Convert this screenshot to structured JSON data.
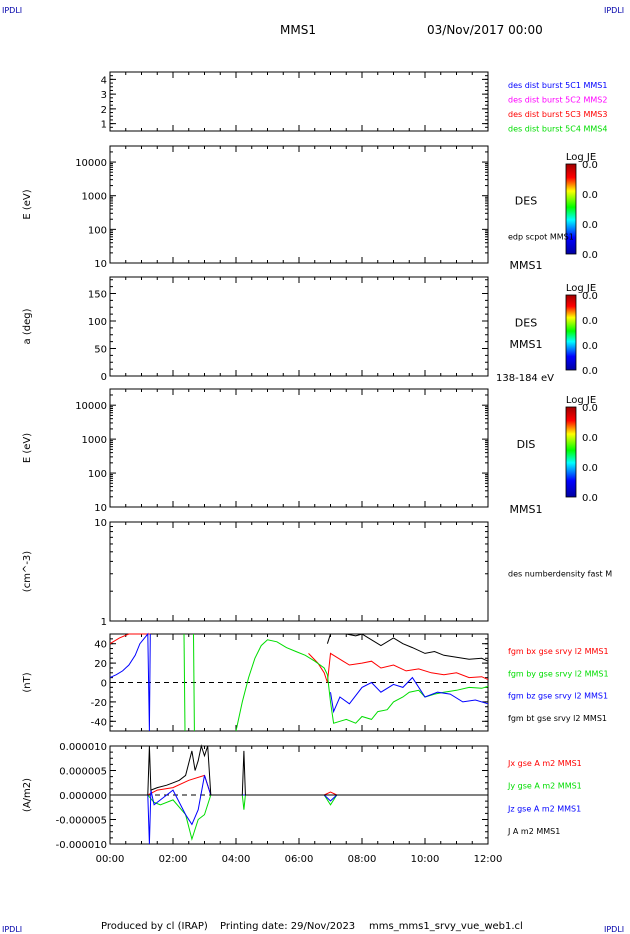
{
  "corner_label": "IPDLI",
  "header": {
    "spacecraft": "MMS1",
    "date": "03/Nov/2017 00:00"
  },
  "footer": {
    "produced_by": "Produced by cl (IRAP)",
    "printing_date": "Printing date: 29/Nov/2023",
    "file": "mms_mms1_srvy_vue_web1.cl"
  },
  "colors": {
    "blue": "#0000ff",
    "magenta": "#ff00ff",
    "red": "#ff0000",
    "green": "#00dd00",
    "black": "#000000"
  },
  "chart_data": [
    {
      "type": "line",
      "ylim": [
        0.5,
        4.5
      ],
      "yticks": [
        "1",
        "2",
        "3",
        "4"
      ],
      "series": [
        {
          "name": "des dist burst 5C1 MMS1",
          "color": "#0000ff"
        },
        {
          "name": "des dist burst 5C2 MMS2",
          "color": "#ff00ff"
        },
        {
          "name": "des dist burst 5C3 MMS3",
          "color": "#ff0000"
        },
        {
          "name": "des dist burst 5C4 MMS4",
          "color": "#00dd00"
        }
      ]
    },
    {
      "type": "heatmap",
      "ylabel": "E (eV)",
      "yscale": "log",
      "ylim": [
        10,
        30000
      ],
      "yticks": [
        "10",
        "100",
        "1000",
        "10000"
      ],
      "right_labels": [
        "DES",
        "MMS1"
      ],
      "overlay": "edp scpot MMS1",
      "colorbar": {
        "title": "Log JE",
        "ticks": [
          "0.0",
          "0.0",
          "0.0",
          "0.0"
        ]
      }
    },
    {
      "type": "heatmap",
      "ylabel": "a (deg)",
      "ylim": [
        0,
        180
      ],
      "yticks": [
        "0",
        "50",
        "100",
        "150"
      ],
      "right_labels": [
        "DES",
        "MMS1",
        "138-184 eV"
      ],
      "colorbar": {
        "title": "Log JE",
        "ticks": [
          "0.0",
          "0.0",
          "0.0",
          "0.0"
        ]
      }
    },
    {
      "type": "heatmap",
      "ylabel": "E (eV)",
      "yscale": "log",
      "ylim": [
        10,
        30000
      ],
      "yticks": [
        "10",
        "100",
        "1000",
        "10000"
      ],
      "right_labels": [
        "DIS",
        "MMS1"
      ],
      "colorbar": {
        "title": "Log JE",
        "ticks": [
          "0.0",
          "0.0",
          "0.0",
          "0.0"
        ]
      }
    },
    {
      "type": "line",
      "ylabel": "(cm^-3)",
      "yscale": "log",
      "ylim": [
        1,
        10
      ],
      "yticks": [
        "1",
        "10"
      ],
      "series": [
        {
          "name": "des numberdensity fast M",
          "color": "#000000"
        }
      ]
    },
    {
      "type": "line",
      "ylabel": "(nT)",
      "ylim": [
        -50,
        50
      ],
      "yticks": [
        "-40",
        "-20",
        "0",
        "20",
        "40"
      ],
      "series": [
        {
          "name": "fgm bx gse srvy l2 MMS1",
          "color": "#ff0000",
          "x": [
            0.0,
            0.3,
            0.6,
            0.8,
            0.95,
            1.1,
            1.28,
            1.3,
            2.4,
            2.45,
            2.5,
            2.85,
            2.9,
            2.95,
            6.0,
            6.3,
            6.6,
            6.8,
            6.9,
            7.0,
            7.1,
            7.4,
            7.6,
            8.0,
            8.3,
            8.6,
            9.0,
            9.4,
            9.8,
            10.2,
            10.6,
            11.0,
            11.4,
            11.8,
            12.0
          ],
          "y": [
            40,
            46,
            50,
            50,
            50,
            50,
            50,
            null,
            null,
            50,
            null,
            null,
            50,
            null,
            null,
            30,
            20,
            10,
            0,
            30,
            28,
            22,
            18,
            20,
            22,
            15,
            18,
            12,
            14,
            10,
            8,
            10,
            5,
            6,
            3
          ]
        },
        {
          "name": "fgm by gse srvy l2 MMS1",
          "color": "#00dd00",
          "x": [
            0.0,
            2.3,
            2.35,
            2.38,
            2.42,
            2.62,
            2.65,
            2.68,
            2.72,
            3.9,
            4.0,
            4.2,
            4.4,
            4.6,
            4.8,
            5.0,
            5.3,
            5.6,
            5.9,
            6.2,
            6.5,
            6.8,
            6.9,
            7.0,
            7.1,
            7.3,
            7.5,
            7.8,
            8.0,
            8.3,
            8.5,
            8.8,
            9.0,
            9.3,
            9.5,
            9.8,
            10.0,
            10.3,
            10.6,
            11.0,
            11.4,
            11.8,
            12.0
          ],
          "y": [
            null,
            null,
            50,
            -50,
            null,
            null,
            50,
            -50,
            null,
            null,
            -50,
            -20,
            5,
            25,
            38,
            44,
            42,
            36,
            32,
            28,
            22,
            15,
            8,
            -20,
            -42,
            -40,
            -38,
            -42,
            -35,
            -38,
            -30,
            -28,
            -20,
            -15,
            -10,
            -8,
            -15,
            -12,
            -10,
            -8,
            -5,
            -6,
            -4
          ]
        },
        {
          "name": "fgm bz gse srvy l2 MMS1",
          "color": "#0000ff",
          "x": [
            0.0,
            0.2,
            0.4,
            0.6,
            0.8,
            0.95,
            1.2,
            1.25,
            1.28,
            1.3,
            6.9,
            7.0,
            7.1,
            7.3,
            7.6,
            8.0,
            8.3,
            8.6,
            9.0,
            9.3,
            9.6,
            10.0,
            10.4,
            10.8,
            11.2,
            11.6,
            12.0
          ],
          "y": [
            5,
            8,
            12,
            18,
            28,
            40,
            50,
            -50,
            50,
            null,
            null,
            -10,
            -30,
            -15,
            -22,
            -5,
            0,
            -10,
            -2,
            -5,
            5,
            -15,
            -10,
            -12,
            -20,
            -18,
            -22
          ]
        },
        {
          "name": "fgm bt gse srvy l2 MMS1",
          "color": "#000000",
          "x": [
            6.9,
            7.0,
            7.2,
            7.5,
            7.8,
            8.0,
            8.3,
            8.6,
            9.0,
            9.3,
            9.6,
            10.0,
            10.3,
            10.6,
            11.0,
            11.4,
            11.8,
            12.0
          ],
          "y": [
            40,
            50,
            50,
            50,
            48,
            50,
            44,
            38,
            46,
            40,
            36,
            30,
            32,
            28,
            26,
            24,
            25,
            22
          ]
        }
      ]
    },
    {
      "type": "line",
      "ylabel": "(A/m2)",
      "ylim": [
        -1e-05,
        1e-05
      ],
      "yticks": [
        "-0.000010",
        "-0.000005",
        "0.000000",
        "0.000005",
        "0.000010"
      ],
      "xticks": [
        "00:00",
        "02:00",
        "04:00",
        "06:00",
        "08:00",
        "10:00",
        "12:00"
      ],
      "xlim": [
        0,
        12
      ],
      "series": [
        {
          "name": "Jx gse A m2 MMS1",
          "color": "#ff0000",
          "x": [
            0.0,
            1.2,
            1.5,
            2.0,
            2.5,
            3.0,
            3.2,
            4.0,
            6.8,
            7.0,
            7.2,
            8.0,
            12.0
          ],
          "y": [
            0,
            0,
            1e-06,
            1.5e-06,
            3e-06,
            4e-06,
            0,
            0,
            0,
            6e-07,
            0,
            0,
            0
          ]
        },
        {
          "name": "Jy gse A m2 MMS1",
          "color": "#00dd00",
          "x": [
            0.0,
            1.2,
            1.4,
            1.6,
            2.0,
            2.4,
            2.6,
            2.8,
            3.0,
            3.2,
            4.2,
            4.25,
            4.3,
            6.8,
            7.0,
            7.2,
            12.0
          ],
          "y": [
            0,
            0,
            -1.5e-06,
            -2e-06,
            -1e-06,
            -4e-06,
            -9e-06,
            -5e-06,
            -4e-06,
            0,
            0,
            -3e-06,
            0,
            0,
            -2e-06,
            0,
            0
          ]
        },
        {
          "name": "Jz gse A m2 MMS1",
          "color": "#0000ff",
          "x": [
            0.0,
            1.2,
            1.25,
            1.3,
            1.4,
            2.0,
            2.4,
            2.6,
            2.8,
            3.0,
            3.2,
            6.8,
            7.0,
            7.2,
            12.0
          ],
          "y": [
            0,
            0,
            -1e-05,
            1e-06,
            -2e-06,
            1e-06,
            -4e-06,
            -6e-06,
            -3e-06,
            4e-06,
            0,
            0,
            -1.2e-06,
            0,
            0
          ]
        },
        {
          "name": "J A m2 MMS1",
          "color": "#000000",
          "x": [
            0.0,
            1.2,
            1.25,
            1.3,
            1.5,
            1.8,
            2.0,
            2.2,
            2.4,
            2.6,
            2.7,
            2.8,
            2.9,
            3.0,
            3.1,
            3.2,
            4.2,
            4.25,
            4.3,
            7.0,
            12.0
          ],
          "y": [
            0,
            0,
            1e-05,
            1e-06,
            1.5e-06,
            2e-06,
            2.5e-06,
            3e-06,
            4e-06,
            9e-06,
            5e-06,
            7e-06,
            1e-05,
            8e-06,
            1e-05,
            0,
            0,
            9e-06,
            0,
            0,
            0
          ]
        }
      ]
    }
  ]
}
